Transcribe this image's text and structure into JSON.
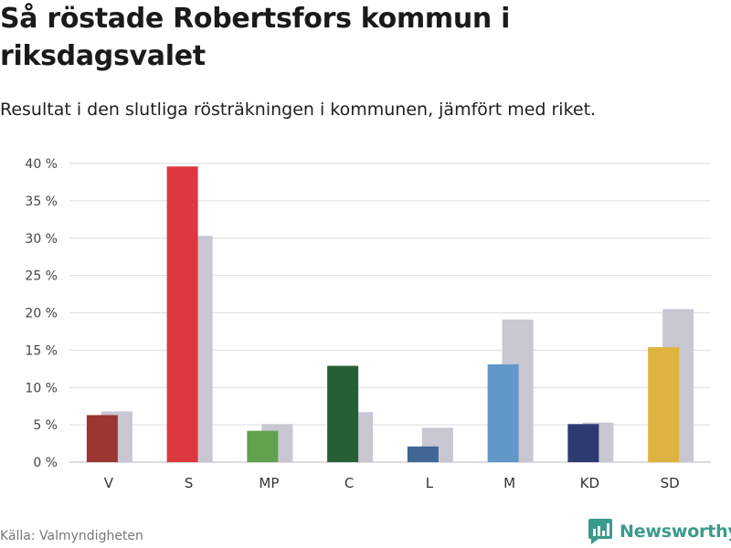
{
  "header": {
    "title": "Så röstade Robertsfors kommun i riksdagsvalet",
    "subtitle": "Resultat i den slutliga rösträkningen i kommunen, jämfört med riket."
  },
  "footer": {
    "source": "Källa: Valmyndigheten",
    "brand": "Newsworthy",
    "brand_icon": "bar-chart-logo-icon",
    "brand_color": "#3a9a8c"
  },
  "chart_data": {
    "type": "bar",
    "categories": [
      "V",
      "S",
      "MP",
      "C",
      "L",
      "M",
      "KD",
      "SD"
    ],
    "ylim": [
      0,
      40
    ],
    "yticks": [
      0,
      5,
      10,
      15,
      20,
      25,
      30,
      35,
      40
    ],
    "ytick_suffix": " %",
    "grid": true,
    "series": [
      {
        "values": [
          6.3,
          39.6,
          4.2,
          12.9,
          2.1,
          13.1,
          5.1,
          15.4
        ],
        "colors": [
          "#9b3633",
          "#dd3740",
          "#62a14d",
          "#265f35",
          "#3f6694",
          "#6198c8",
          "#2d3a72",
          "#deb33f"
        ]
      },
      {
        "values": [
          6.8,
          30.3,
          5.1,
          6.7,
          4.6,
          19.1,
          5.3,
          20.5
        ],
        "color": "#c8c7d2"
      }
    ]
  }
}
